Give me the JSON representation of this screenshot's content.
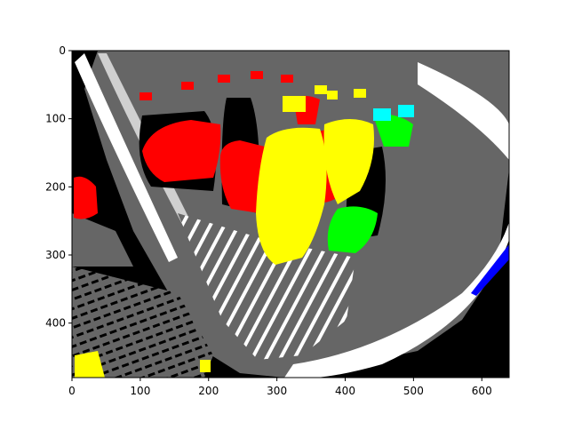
{
  "figure": {
    "x_ticks": [
      "0",
      "100",
      "200",
      "300",
      "400",
      "500",
      "600"
    ],
    "y_ticks": [
      "0",
      "100",
      "200",
      "300",
      "400"
    ],
    "x_tick_values": [
      0,
      100,
      200,
      300,
      400,
      500,
      600
    ],
    "y_tick_values": [
      0,
      100,
      200,
      300,
      400
    ]
  },
  "image_extent": {
    "x_range": [
      0,
      640
    ],
    "y_range": [
      0,
      480
    ]
  },
  "palette": {
    "background": "#000000",
    "gray": "#666666",
    "white": "#ffffff",
    "red": "#ff0000",
    "yellow": "#ffff00",
    "green": "#00ff00",
    "cyan": "#00ffff",
    "blue": "#0000ff"
  }
}
